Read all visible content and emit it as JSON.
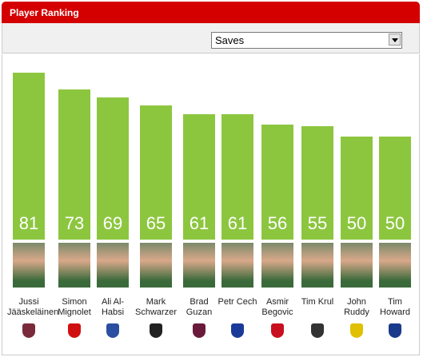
{
  "header": {
    "title": "Player Ranking",
    "dropdown": "Saves"
  },
  "chart_data": {
    "type": "bar",
    "categories": [
      "Jussi Jääskeläinen",
      "Simon Mignolet",
      "Ali Al-Habsi",
      "Mark Schwarzer",
      "Brad Guzan",
      "Petr Cech",
      "Asmir Begovic",
      "Tim Krul",
      "John Ruddy",
      "Tim Howard"
    ],
    "values": [
      81,
      73,
      69,
      65,
      61,
      61,
      56,
      55,
      50,
      50
    ],
    "color": "#8cc63f"
  }
}
